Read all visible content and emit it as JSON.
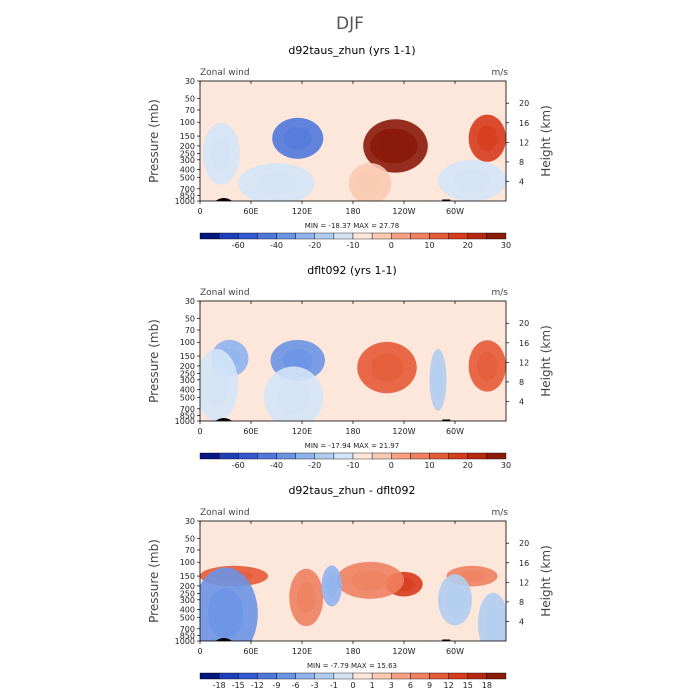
{
  "figure": {
    "title": "DJF",
    "colors": {
      "dark_red": "#8b1a0a",
      "red": "#d73a1c",
      "orange": "#ee6a44",
      "salmon": "#f5a283",
      "peach": "#fbc9b1",
      "pale": "#fde6da",
      "pale_blue": "#d4e4f6",
      "light_blue": "#b0cdf0",
      "blue": "#7ea6ea",
      "mid_blue": "#5078dc",
      "dark_blue": "#1d3fb8",
      "navy": "#061580"
    }
  },
  "chart_data": [
    {
      "type": "heatmap",
      "title": "d92taus_zhun (yrs 1-1)",
      "variable_label": "Zonal wind",
      "units_label": "m/s",
      "ylabel": "Pressure (mb)",
      "ylabel_right": "Height (km)",
      "x_ticks": [
        "0",
        "60E",
        "120E",
        "180",
        "120W",
        "60W"
      ],
      "x_tick_values": [
        0,
        60,
        120,
        180,
        240,
        300
      ],
      "xlim": [
        0,
        360
      ],
      "y_ticks": [
        "30",
        "50",
        "70",
        "100",
        "150",
        "200",
        "250",
        "300",
        "400",
        "500",
        "700",
        "850",
        "1000"
      ],
      "y_tick_values": [
        30,
        50,
        70,
        100,
        150,
        200,
        250,
        300,
        400,
        500,
        700,
        850,
        1000
      ],
      "ylim": [
        1000,
        30
      ],
      "y_right_ticks": [
        "4",
        "8",
        "12",
        "16",
        "20"
      ],
      "y_right_values": [
        4,
        8,
        12,
        16,
        20
      ],
      "stats_text": "MIN = -18.37  MAX = 27.78",
      "min": -18.37,
      "max": 27.78,
      "colorbar": {
        "labels": [
          "-60",
          "-40",
          "-20",
          "-10",
          "0",
          "10",
          "20",
          "30"
        ],
        "label_after_bin": [
          1,
          3,
          5,
          7,
          9,
          11,
          13,
          15
        ],
        "colors": [
          "#061580",
          "#1d3fb8",
          "#3358cf",
          "#5078dc",
          "#6a93e6",
          "#8fb3ee",
          "#b0cdf0",
          "#d4e4f6",
          "#fde6da",
          "#fbc9b1",
          "#f5a283",
          "#ee8161",
          "#e55a37",
          "#d73a1c",
          "#b42812",
          "#8b1a0a"
        ]
      },
      "base_color": "#fde6da",
      "features": [
        {
          "lon": 230,
          "pres": 200,
          "dlon": 38,
          "dlev": 0.26,
          "value": 26,
          "color": "#8b1a0a"
        },
        {
          "lon": 228,
          "pres": 200,
          "dlon": 28,
          "dlev": 0.17,
          "value": 24,
          "color": "#8b1a0a"
        },
        {
          "lon": 338,
          "pres": 160,
          "dlon": 22,
          "dlev": 0.23,
          "value": 22,
          "color": "#d73a1c"
        },
        {
          "lon": 115,
          "pres": 160,
          "dlon": 30,
          "dlev": 0.2,
          "value": -18,
          "color": "#5078dc"
        },
        {
          "lon": 25,
          "pres": 250,
          "dlon": 22,
          "dlev": 0.3,
          "value": -4,
          "color": "#d4e4f6"
        },
        {
          "lon": 90,
          "pres": 600,
          "dlon": 45,
          "dlev": 0.2,
          "value": -3,
          "color": "#d4e4f6"
        },
        {
          "lon": 320,
          "pres": 550,
          "dlon": 40,
          "dlev": 0.2,
          "value": -3,
          "color": "#d4e4f6"
        },
        {
          "lon": 200,
          "pres": 600,
          "dlon": 25,
          "dlev": 0.2,
          "value": 6,
          "color": "#fbc9b1"
        }
      ]
    },
    {
      "type": "heatmap",
      "title": "dflt092 (yrs 1-1)",
      "variable_label": "Zonal wind",
      "units_label": "m/s",
      "ylabel": "Pressure (mb)",
      "ylabel_right": "Height (km)",
      "x_ticks": [
        "0",
        "60E",
        "120E",
        "180",
        "120W",
        "60W"
      ],
      "x_tick_values": [
        0,
        60,
        120,
        180,
        240,
        300
      ],
      "xlim": [
        0,
        360
      ],
      "y_ticks": [
        "30",
        "50",
        "70",
        "100",
        "150",
        "200",
        "250",
        "300",
        "400",
        "500",
        "700",
        "850",
        "1000"
      ],
      "y_tick_values": [
        30,
        50,
        70,
        100,
        150,
        200,
        250,
        300,
        400,
        500,
        700,
        850,
        1000
      ],
      "ylim": [
        1000,
        30
      ],
      "y_right_ticks": [
        "4",
        "8",
        "12",
        "16",
        "20"
      ],
      "y_right_values": [
        4,
        8,
        12,
        16,
        20
      ],
      "stats_text": "MIN = -17.94  MAX = 21.97",
      "min": -17.94,
      "max": 21.97,
      "colorbar": {
        "labels": [
          "-60",
          "-40",
          "-20",
          "-10",
          "0",
          "10",
          "20",
          "30"
        ],
        "label_after_bin": [
          1,
          3,
          5,
          7,
          9,
          11,
          13,
          15
        ],
        "colors": [
          "#061580",
          "#1d3fb8",
          "#3358cf",
          "#5078dc",
          "#6a93e6",
          "#8fb3ee",
          "#b0cdf0",
          "#d4e4f6",
          "#fde6da",
          "#fbc9b1",
          "#f5a283",
          "#ee8161",
          "#e55a37",
          "#d73a1c",
          "#b42812",
          "#8b1a0a"
        ]
      },
      "base_color": "#fde6da",
      "features": [
        {
          "lon": 220,
          "pres": 210,
          "dlon": 35,
          "dlev": 0.25,
          "value": 20,
          "color": "#e55a37"
        },
        {
          "lon": 338,
          "pres": 200,
          "dlon": 22,
          "dlev": 0.25,
          "value": 19,
          "color": "#e55a37"
        },
        {
          "lon": 115,
          "pres": 170,
          "dlon": 32,
          "dlev": 0.2,
          "value": -14,
          "color": "#6a93e6"
        },
        {
          "lon": 35,
          "pres": 160,
          "dlon": 22,
          "dlev": 0.18,
          "value": -10,
          "color": "#8fb3ee"
        },
        {
          "lon": 20,
          "pres": 350,
          "dlon": 25,
          "dlev": 0.35,
          "value": -4,
          "color": "#d4e4f6"
        },
        {
          "lon": 110,
          "pres": 500,
          "dlon": 35,
          "dlev": 0.3,
          "value": -3,
          "color": "#d4e4f6"
        },
        {
          "lon": 280,
          "pres": 300,
          "dlon": 10,
          "dlev": 0.3,
          "value": -6,
          "color": "#b0cdf0"
        }
      ]
    },
    {
      "type": "heatmap",
      "title": "d92taus_zhun - dflt092",
      "variable_label": "Zonal wind",
      "units_label": "m/s",
      "ylabel": "Pressure (mb)",
      "ylabel_right": "Height (km)",
      "x_ticks": [
        "0",
        "60E",
        "120E",
        "180",
        "120W",
        "60W"
      ],
      "x_tick_values": [
        0,
        60,
        120,
        180,
        240,
        300
      ],
      "xlim": [
        0,
        360
      ],
      "y_ticks": [
        "30",
        "50",
        "70",
        "100",
        "150",
        "200",
        "250",
        "300",
        "400",
        "500",
        "700",
        "850",
        "1000"
      ],
      "y_tick_values": [
        30,
        50,
        70,
        100,
        150,
        200,
        250,
        300,
        400,
        500,
        700,
        850,
        1000
      ],
      "ylim": [
        1000,
        30
      ],
      "y_right_ticks": [
        "4",
        "8",
        "12",
        "16",
        "20"
      ],
      "y_right_values": [
        4,
        8,
        12,
        16,
        20
      ],
      "stats_text": "MIN = -7.79  MAX = 15.63",
      "min": -7.79,
      "max": 15.63,
      "colorbar": {
        "labels": [
          "-18",
          "-15",
          "-12",
          "-9",
          "-6",
          "-3",
          "-1",
          "0",
          "1",
          "3",
          "6",
          "9",
          "12",
          "15",
          "18"
        ],
        "label_after_bin": [
          0,
          1,
          2,
          3,
          4,
          5,
          6,
          7,
          8,
          9,
          10,
          11,
          12,
          13,
          14
        ],
        "colors": [
          "#061580",
          "#1d3fb8",
          "#3358cf",
          "#5078dc",
          "#6a93e6",
          "#8fb3ee",
          "#b0cdf0",
          "#d4e4f6",
          "#fde6da",
          "#fbc9b1",
          "#f5a283",
          "#ee8161",
          "#e55a37",
          "#d73a1c",
          "#b42812",
          "#8b1a0a"
        ]
      },
      "base_color": "#fde6da",
      "features": [
        {
          "lon": 40,
          "pres": 150,
          "dlon": 40,
          "dlev": 0.1,
          "value": 9,
          "color": "#e55a37"
        },
        {
          "lon": 240,
          "pres": 190,
          "dlon": 22,
          "dlev": 0.12,
          "value": 12,
          "color": "#d73a1c"
        },
        {
          "lon": 200,
          "pres": 170,
          "dlon": 40,
          "dlev": 0.18,
          "value": 6,
          "color": "#ee8161"
        },
        {
          "lon": 320,
          "pres": 150,
          "dlon": 30,
          "dlev": 0.1,
          "value": 6,
          "color": "#ee8161"
        },
        {
          "lon": 125,
          "pres": 280,
          "dlon": 20,
          "dlev": 0.28,
          "value": 6,
          "color": "#ee8161"
        },
        {
          "lon": 30,
          "pres": 450,
          "dlon": 38,
          "dlev": 0.45,
          "value": -7,
          "color": "#6a93e6"
        },
        {
          "lon": 155,
          "pres": 200,
          "dlon": 12,
          "dlev": 0.2,
          "value": -6,
          "color": "#8fb3ee"
        },
        {
          "lon": 300,
          "pres": 300,
          "dlon": 20,
          "dlev": 0.25,
          "value": -3,
          "color": "#b0cdf0"
        },
        {
          "lon": 345,
          "pres": 600,
          "dlon": 18,
          "dlev": 0.3,
          "value": -3,
          "color": "#b0cdf0"
        }
      ]
    }
  ]
}
